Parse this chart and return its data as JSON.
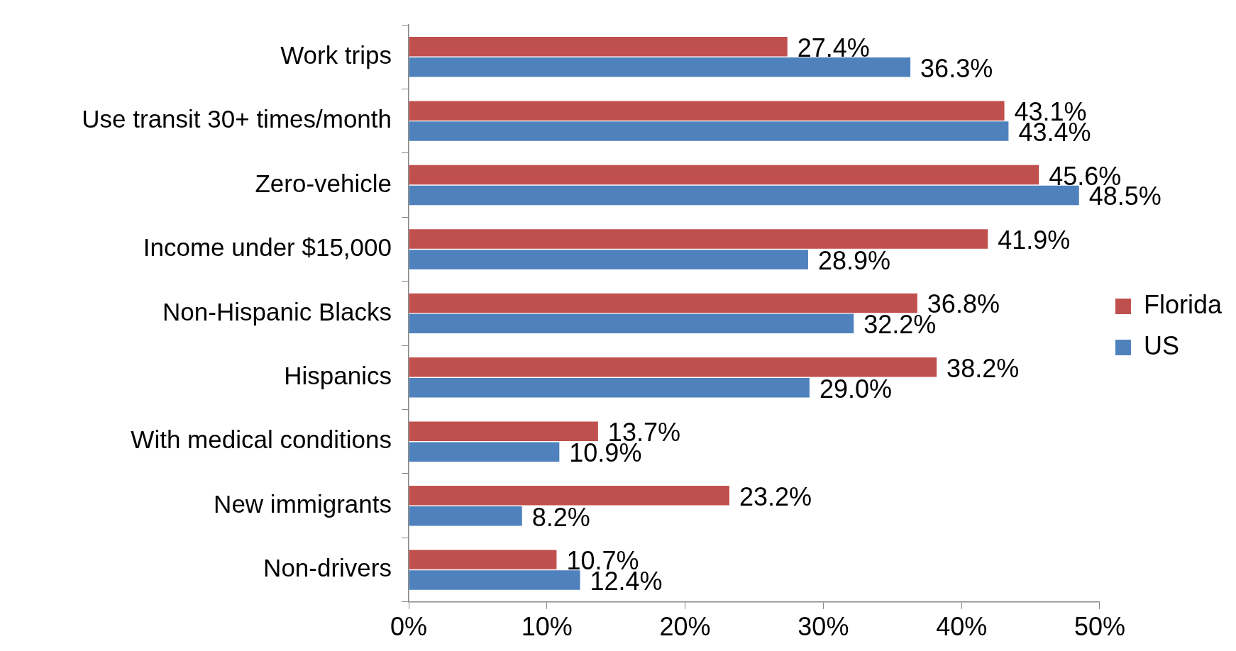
{
  "chart_data": {
    "type": "bar",
    "orientation": "horizontal",
    "categories": [
      "Work trips",
      "Use transit 30+ times/month",
      "Zero-vehicle",
      "Income under $15,000",
      "Non-Hispanic Blacks",
      "Hispanics",
      "With medical conditions",
      "New immigrants",
      "Non-drivers"
    ],
    "series": [
      {
        "name": "Florida",
        "color": "#c0504d",
        "values": [
          27.4,
          43.1,
          45.6,
          41.9,
          36.8,
          38.2,
          13.7,
          23.2,
          10.7
        ],
        "value_labels": [
          "27.4%",
          "43.1%",
          "45.6%",
          "41.9%",
          "36.8%",
          "38.2%",
          "13.7%",
          "23.2%",
          "10.7%"
        ]
      },
      {
        "name": "US",
        "color": "#4f81bd",
        "values": [
          36.3,
          43.4,
          48.5,
          28.9,
          32.2,
          29.0,
          10.9,
          8.2,
          12.4
        ],
        "value_labels": [
          "36.3%",
          "43.4%",
          "48.5%",
          "28.9%",
          "32.2%",
          "29.0%",
          "10.9%",
          "8.2%",
          "12.4%"
        ]
      }
    ],
    "xlim": [
      0,
      50
    ],
    "xticks": [
      {
        "value": 0,
        "label": "0%"
      },
      {
        "value": 10,
        "label": "10%"
      },
      {
        "value": 20,
        "label": "20%"
      },
      {
        "value": 30,
        "label": "30%"
      },
      {
        "value": 40,
        "label": "40%"
      },
      {
        "value": 50,
        "label": "50%"
      }
    ],
    "legend": "right"
  }
}
